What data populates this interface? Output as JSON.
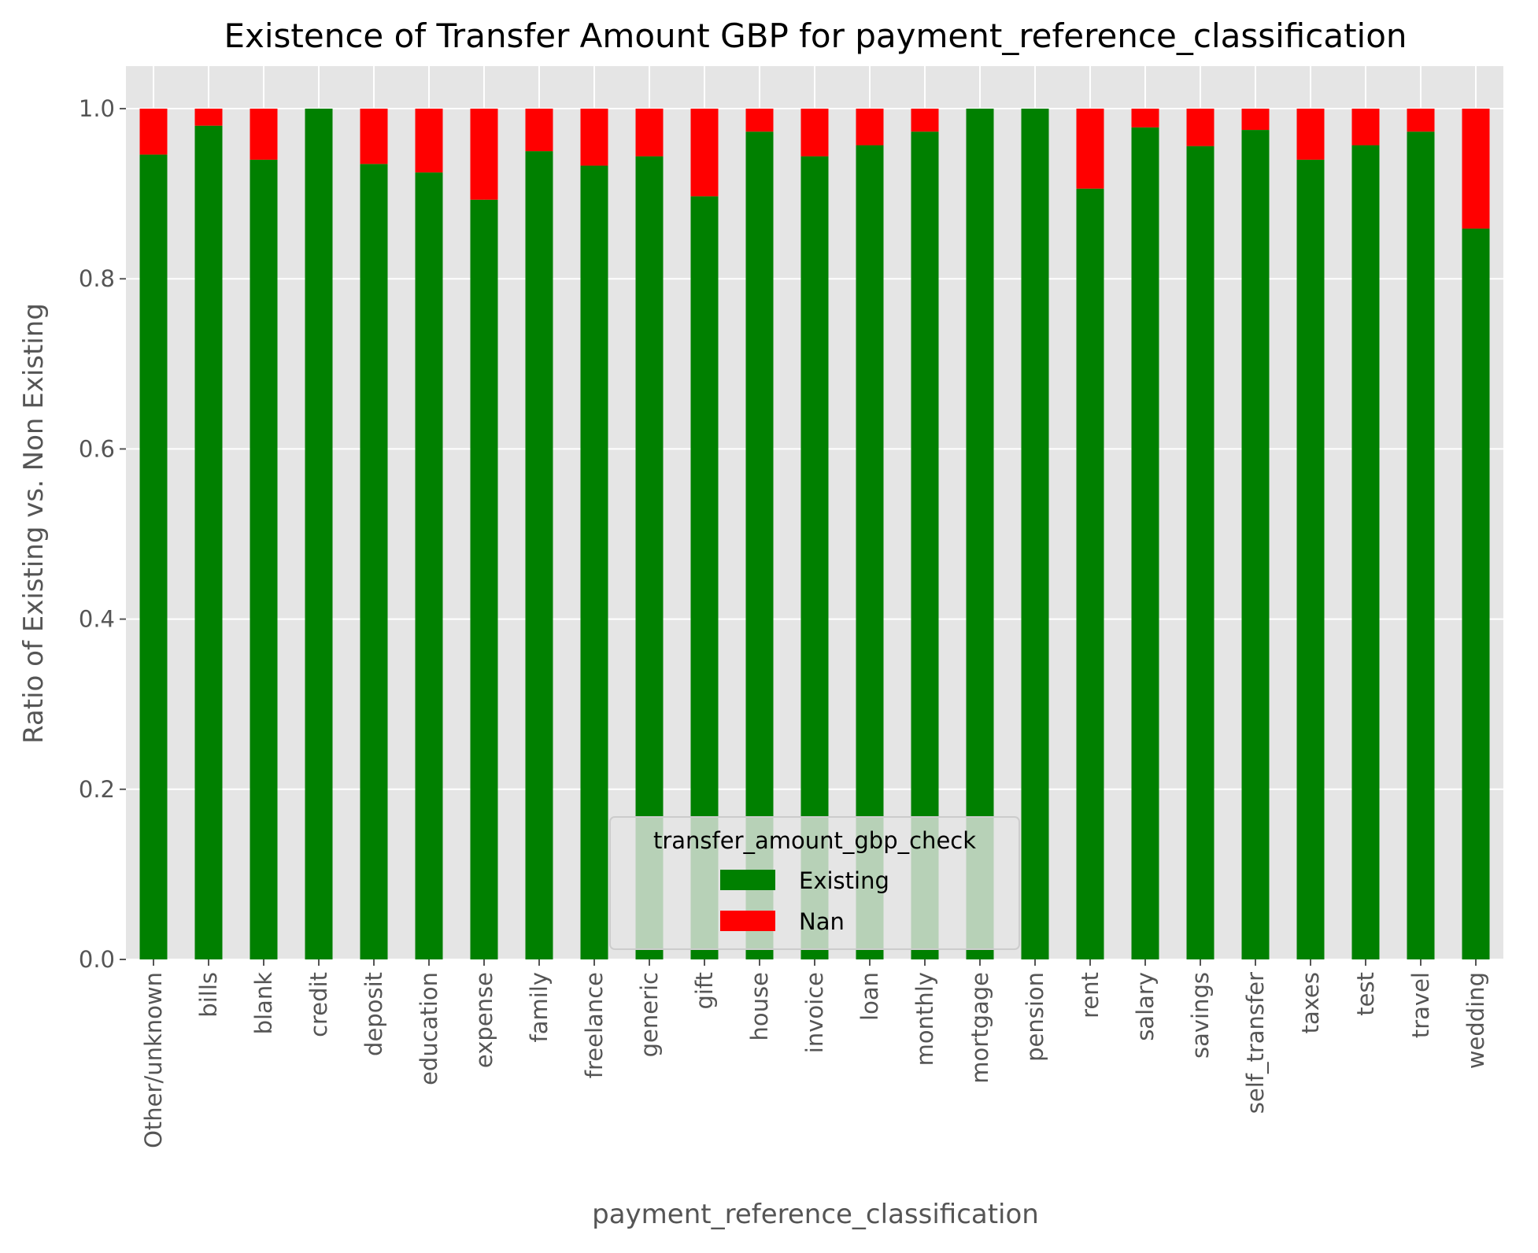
{
  "chart_data": {
    "type": "bar",
    "stacked": true,
    "title": "Existence of Transfer Amount GBP for payment_reference_classification",
    "xlabel": "payment_reference_classification",
    "ylabel": "Ratio of Existing vs. Non Existing",
    "ylim": [
      0,
      1.05
    ],
    "yticks": [
      0.0,
      0.2,
      0.4,
      0.6,
      0.8,
      1.0
    ],
    "ytick_labels": [
      "0.0",
      "0.2",
      "0.4",
      "0.6",
      "0.8",
      "1.0"
    ],
    "grid": true,
    "legend": {
      "title": "transfer_amount_gbp_check",
      "placement": "lower center"
    },
    "categories": [
      "Other/unknown",
      "bills",
      "blank",
      "credit",
      "deposit",
      "education",
      "expense",
      "family",
      "freelance",
      "generic",
      "gift",
      "house",
      "invoice",
      "loan",
      "monthly",
      "mortgage",
      "pension",
      "rent",
      "salary",
      "savings",
      "self_transfer",
      "taxes",
      "test",
      "travel",
      "wedding"
    ],
    "series": [
      {
        "name": "Existing",
        "color": "#008000",
        "values": [
          0.946,
          0.98,
          0.94,
          1.0,
          0.935,
          0.925,
          0.893,
          0.95,
          0.933,
          0.944,
          0.897,
          0.973,
          0.944,
          0.957,
          0.973,
          1.0,
          1.0,
          0.906,
          0.978,
          0.956,
          0.975,
          0.94,
          0.957,
          0.973,
          0.859
        ]
      },
      {
        "name": "Nan",
        "color": "#ff0000",
        "values": [
          0.054,
          0.02,
          0.06,
          0.0,
          0.065,
          0.075,
          0.107,
          0.05,
          0.067,
          0.056,
          0.103,
          0.027,
          0.056,
          0.043,
          0.027,
          0.0,
          0.0,
          0.094,
          0.022,
          0.044,
          0.025,
          0.06,
          0.043,
          0.027,
          0.141
        ]
      }
    ],
    "colors": {
      "plot_background": "#e5e5e5",
      "grid": "#ffffff",
      "tick_text": "#555555"
    }
  }
}
